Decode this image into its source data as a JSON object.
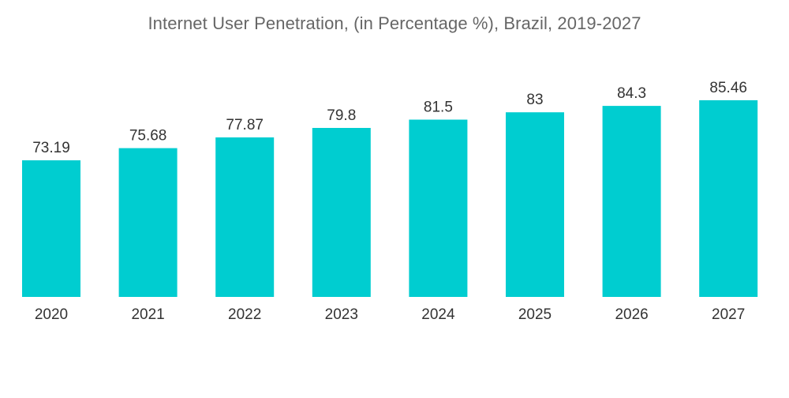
{
  "chart_data": {
    "type": "bar",
    "title": "Internet User Penetration, (in Percentage %), Brazil, 2019-2027",
    "categories": [
      "2020",
      "2021",
      "2022",
      "2023",
      "2024",
      "2025",
      "2026",
      "2027"
    ],
    "values": [
      73.19,
      75.68,
      77.87,
      79.8,
      81.5,
      83,
      84.3,
      85.46
    ],
    "value_labels": [
      "73.19",
      "75.68",
      "77.87",
      "79.8",
      "81.5",
      "83",
      "84.3",
      "85.46"
    ],
    "xlabel": "",
    "ylabel": "",
    "grid": false,
    "legend": "none",
    "bar_color": "#00CDD0"
  }
}
